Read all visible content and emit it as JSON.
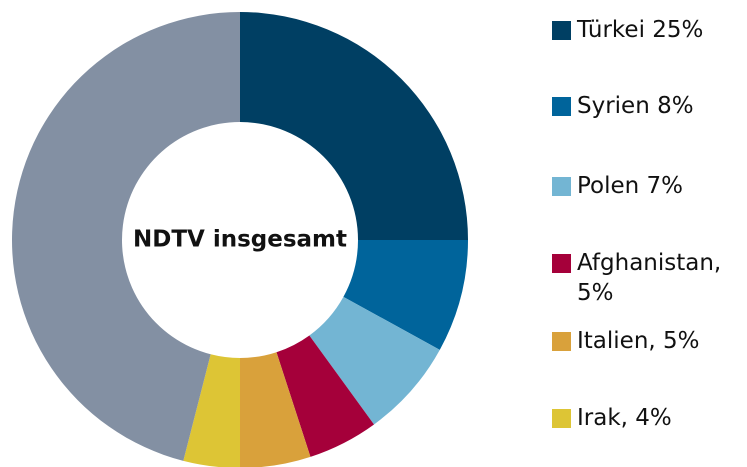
{
  "chart_data": {
    "type": "donut",
    "title": "NDTV insgesamt",
    "categories": [
      "Türkei 25%",
      "Syrien 8%",
      "Polen 7%",
      "Afghanistan, 5%",
      "Italien, 5%",
      "Irak, 4%",
      null
    ],
    "values": [
      25,
      8,
      7,
      5,
      5,
      4,
      46
    ],
    "colors": [
      "#003f63",
      "#00649b",
      "#73b5d3",
      "#a5003a",
      "#d9a13b",
      "#ddc535",
      "#8390a3"
    ]
  }
}
